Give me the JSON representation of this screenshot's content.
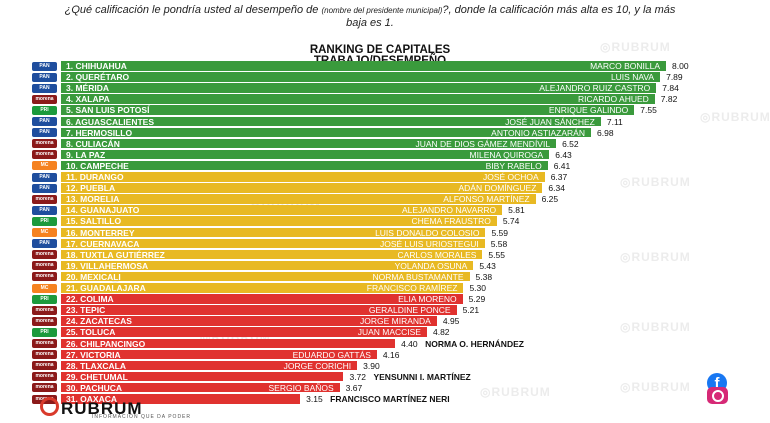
{
  "question_main": "¿Qué calificación le pondría usted al desempeño de",
  "question_small": "(nombre del presidente municipal)",
  "question_end": "?, donde la calificación más alta es 10, y la más baja es 1.",
  "title_line1": "RANKING DE CAPITALES",
  "title_line2": "TRABAJO/DESEMPEÑO",
  "brand": "RUBRUM",
  "tagline": "INFORMACIÓN QUE DA PODER",
  "watermark": "RUBRUM",
  "colors": {
    "green": "#3a9a3c",
    "yellow": "#e8b923",
    "red": "#e0322f",
    "pan": "#1f4e9e",
    "pri": "#1c9a3c",
    "morena": "#8b1a1a",
    "mc": "#f58220"
  },
  "chart_data": {
    "type": "bar",
    "orientation": "horizontal",
    "categories": [
      "1. CHIHUAHUA",
      "2. QUERÉTARO",
      "3. MÉRIDA",
      "4. XALAPA",
      "5. SAN LUIS POTOSÍ",
      "6. AGUASCALIENTES",
      "7. HERMOSILLO",
      "8. CULIACÁN",
      "9. LA PAZ",
      "10. CAMPECHE",
      "11. DURANGO",
      "12. PUEBLA",
      "13. MORELIA",
      "14. GUANAJUATO",
      "15. SALTILLO",
      "16. MONTERREY",
      "17. CUERNAVACA",
      "18. TUXTLA GUTIÉRREZ",
      "19. VILLAHERMOSA",
      "20. MEXICALI",
      "21. GUADALAJARA",
      "22. COLIMA",
      "23. TEPIC",
      "24. ZACATECAS",
      "25. TOLUCA",
      "26. CHILPANCINGO",
      "27. VICTORIA",
      "28. TLAXCALA",
      "29. CHETUMAL",
      "30. PACHUCA",
      "31. OAXACA"
    ],
    "mayors": [
      "MARCO BONILLA",
      "LUIS NAVA",
      "ALEJANDRO RUIZ CASTRO",
      "RICARDO AHUED",
      "ENRIQUE GALINDO",
      "JOSÉ JUAN SÁNCHEZ",
      "ANTONIO ASTIAZARÁN",
      "JUAN DE DIOS GÁMEZ MENDÍVIL",
      "MILENA QUIROGA",
      "BIBY RABELO",
      "JOSÉ OCHOA",
      "ADÁN DOMÍNGUEZ",
      "ALFONSO MARTÍNEZ",
      "ALEJANDRO NAVARRO",
      "CHEMA FRAUSTRO",
      "LUIS DONALDO COLOSIO",
      "JOSÉ LUIS URIOSTEGUI",
      "CARLOS MORALES",
      "YOLANDA OSUNA",
      "NORMA BUSTAMANTE",
      "FRANCISCO RAMÍREZ",
      "ELIA MORENO",
      "GERALDINE PONCE",
      "JORGE MIRANDA",
      "JUAN MACCISE",
      "NORMA O. HERNÁNDEZ",
      "EDUARDO GATTÁS",
      "JORGE CORICHI",
      "YENSUNNI I. MARTÍNEZ",
      "SERGIO BAÑOS",
      "FRANCISCO MARTÍNEZ NERI"
    ],
    "values": [
      "8.00",
      "7.89",
      "7.84",
      "7.82",
      "7.55",
      "7.11",
      "6.98",
      "6.52",
      "6.43",
      "6.41",
      "6.37",
      "6.34",
      "6.25",
      "5.81",
      "5.74",
      "5.59",
      "5.58",
      "5.55",
      "5.43",
      "5.38",
      "5.30",
      "5.29",
      "5.21",
      "4.95",
      "4.82",
      "4.40",
      "4.16",
      "3.90",
      "3.72",
      "3.67",
      "3.15"
    ],
    "party_logos": [
      "PAN",
      "PAN",
      "PAN",
      "morena",
      "PRI",
      "PAN",
      "PAN",
      "morena",
      "morena",
      "MC",
      "PAN",
      "PAN",
      "morena",
      "PAN",
      "PRI",
      "MC",
      "PAN",
      "morena",
      "morena",
      "morena",
      "MC",
      "PRI",
      "morena",
      "morena",
      "PRI",
      "morena",
      "morena",
      "morena",
      "morena",
      "morena",
      "morena"
    ],
    "bar_colors": [
      "green",
      "green",
      "green",
      "green",
      "green",
      "green",
      "green",
      "green",
      "green",
      "green",
      "yellow",
      "yellow",
      "yellow",
      "yellow",
      "yellow",
      "yellow",
      "yellow",
      "yellow",
      "yellow",
      "yellow",
      "yellow",
      "red",
      "red",
      "red",
      "red",
      "red",
      "red",
      "red",
      "red",
      "red",
      "red"
    ],
    "name_outside": [
      false,
      false,
      false,
      false,
      false,
      false,
      false,
      false,
      false,
      false,
      false,
      false,
      false,
      false,
      false,
      false,
      false,
      false,
      false,
      false,
      false,
      false,
      false,
      false,
      false,
      true,
      false,
      false,
      true,
      false,
      true
    ],
    "xlim": [
      0,
      8.3
    ]
  }
}
